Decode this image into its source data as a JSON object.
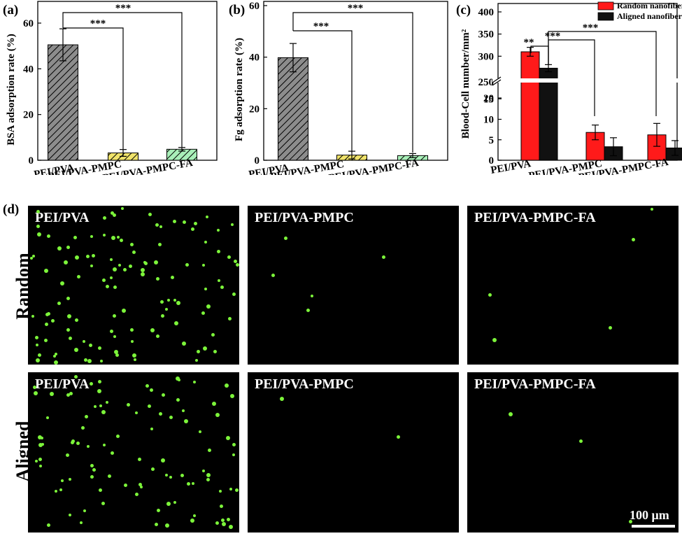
{
  "panels": {
    "a": {
      "label": "(a)"
    },
    "b": {
      "label": "(b)"
    },
    "c": {
      "label": "(c)"
    },
    "d": {
      "label": "(d)"
    }
  },
  "chart_data": [
    {
      "type": "bar",
      "categories": [
        "PEI/PVA",
        "PEI/PVA-PMPC",
        "PEI/PVA-PMPC-FA"
      ],
      "values": [
        50.5,
        3.2,
        4.8
      ],
      "errors": [
        7.0,
        1.5,
        0.8
      ],
      "ylabel": "BSA adsorption rate (%)",
      "ylim": [
        0,
        70
      ],
      "yticks": [
        "0",
        "20",
        "40",
        "60"
      ],
      "significance": [
        "***",
        "***"
      ],
      "colors": [
        "#8c8c8c",
        "#f0e36a",
        "#a8efb8"
      ]
    },
    {
      "type": "bar",
      "categories": [
        "PEI/PVA",
        "PEI/PVA-PMPC",
        "PEI/PVA-PMPC-FA"
      ],
      "values": [
        39.8,
        2.0,
        1.8
      ],
      "errors": [
        5.5,
        1.5,
        0.8
      ],
      "ylabel": "Fg adsorption rate (%)",
      "ylim": [
        0,
        60
      ],
      "yticks": [
        "0",
        "20",
        "40",
        "60"
      ],
      "significance": [
        "***",
        "***"
      ],
      "colors": [
        "#8c8c8c",
        "#f0e36a",
        "#a8efb8"
      ]
    },
    {
      "type": "bar",
      "categories": [
        "PEI/PVA",
        "PEI/PVA-PMPC",
        "PEI/PVA-PMPC-FA"
      ],
      "series": [
        {
          "name": "Random nanofibers",
          "values": [
            310,
            6.8,
            6.2
          ],
          "errors": [
            10,
            1.8,
            2.8
          ],
          "color": "#ff1a1a"
        },
        {
          "name": "Aligned nanofibers",
          "values": [
            273,
            3.3,
            3.0
          ],
          "errors": [
            8,
            2.2,
            1.8
          ],
          "color": "#111111"
        }
      ],
      "ylabel": "Blood-Cell number/mm²",
      "axis_break": [
        20,
        250
      ],
      "yticks_lower": [
        "0",
        "5",
        "10",
        "15",
        "20"
      ],
      "yticks_upper": [
        "250",
        "300",
        "350",
        "400"
      ],
      "significance": [
        "**",
        "***",
        "***"
      ],
      "legend_position": "top-right"
    }
  ],
  "micrographs": {
    "row_labels": [
      "Random",
      "Aligned"
    ],
    "titles": [
      [
        "PEI/PVA",
        "PEI/PVA-PMPC",
        "PEI/PVA-PMPC-FA"
      ],
      [
        "PEI/PVA",
        "PEI/PVA-PMPC",
        "PEI/PVA-PMPC-FA"
      ]
    ],
    "scale_bar": "100 μm",
    "dot_color": "#7cf43a"
  }
}
